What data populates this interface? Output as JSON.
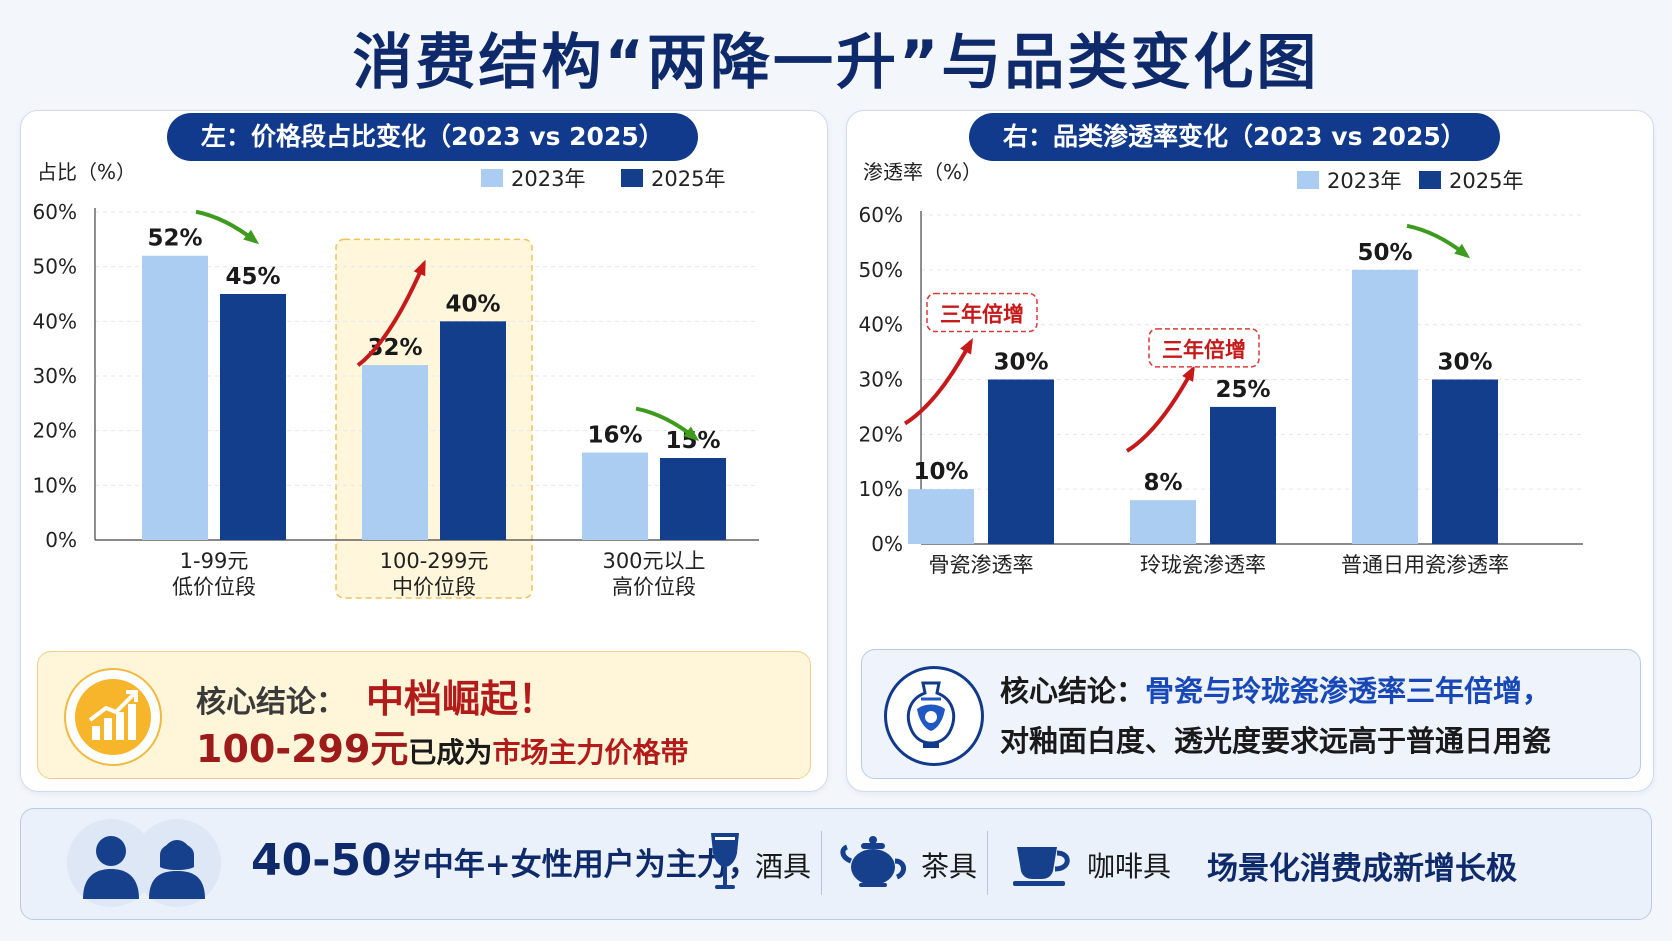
{
  "title": "消费结构“两降一升”与品类变化图",
  "colors": {
    "y2023": "#aacdf1",
    "y2025": "#123e8c",
    "up": "#c61a1a",
    "down": "#3f9b1f",
    "navy": "#0f2a6b"
  },
  "left": {
    "header": "左：价格段占比变化（2023 vs 2025）",
    "conclusion": {
      "prefix": "核心结论：",
      "highlight": "中档崛起！",
      "line2_a": "100-299元",
      "line2_b": "已成为",
      "line2_c": "市场主力价格带",
      "icon": "rising-bar-chart-icon"
    }
  },
  "right": {
    "header": "右：品类渗透率变化（2023 vs 2025）",
    "conclusion": {
      "prefix": "核心结论：",
      "highlight": "骨瓷与玲珑瓷渗透率三年倍增，",
      "line2": "对釉面白度、透光度要求远高于普通日用瓷",
      "icon": "porcelain-vase-icon"
    }
  },
  "chart_data": [
    {
      "type": "bar",
      "ylabel": "占比（%）",
      "ylim": [
        0,
        60
      ],
      "yticks": [
        "0%",
        "10%",
        "20%",
        "30%",
        "40%",
        "50%",
        "60%"
      ],
      "categories": [
        [
          "1-99元",
          "低价位段"
        ],
        [
          "100-299元",
          "中价位段"
        ],
        [
          "300元以上",
          "高价位段"
        ]
      ],
      "series": [
        {
          "name": "2023年",
          "values": [
            52,
            32,
            16
          ],
          "labels": [
            "52%",
            "32%",
            "16%"
          ]
        },
        {
          "name": "2025年",
          "values": [
            45,
            40,
            15
          ],
          "labels": [
            "45%",
            "40%",
            "15%"
          ]
        }
      ],
      "trend": [
        "down",
        "up",
        "down"
      ],
      "highlight_category": 1,
      "legend": "top-right",
      "grid": true
    },
    {
      "type": "bar",
      "ylabel": "渗透率（%）",
      "ylim": [
        0,
        60
      ],
      "yticks": [
        "0%",
        "10%",
        "20%",
        "30%",
        "40%",
        "50%",
        "60%"
      ],
      "categories": [
        [
          "骨瓷渗透率"
        ],
        [
          "玲珑瓷渗透率"
        ],
        [
          "普通日用瓷渗透率"
        ]
      ],
      "series": [
        {
          "name": "2023年",
          "values": [
            10,
            8,
            50
          ],
          "labels": [
            "10%",
            "8%",
            "50%"
          ]
        },
        {
          "name": "2025年",
          "values": [
            30,
            25,
            30
          ],
          "labels": [
            "30%",
            "25%",
            "30%"
          ]
        }
      ],
      "trend": [
        "up",
        "up",
        "down"
      ],
      "callouts": [
        "三年倍增",
        "三年倍增",
        ""
      ],
      "legend": "top-right",
      "grid": true
    }
  ],
  "bottom": {
    "main_num": "40-50",
    "main_rest": "岁中年+女性用户为主力，",
    "items": [
      {
        "label": "酒具",
        "icon": "wine-glass-icon"
      },
      {
        "label": "茶具",
        "icon": "teapot-icon"
      },
      {
        "label": "咖啡具",
        "icon": "coffee-cup-icon"
      }
    ],
    "tail": "场景化消费成新增长极",
    "users_icon": "users-icon"
  }
}
